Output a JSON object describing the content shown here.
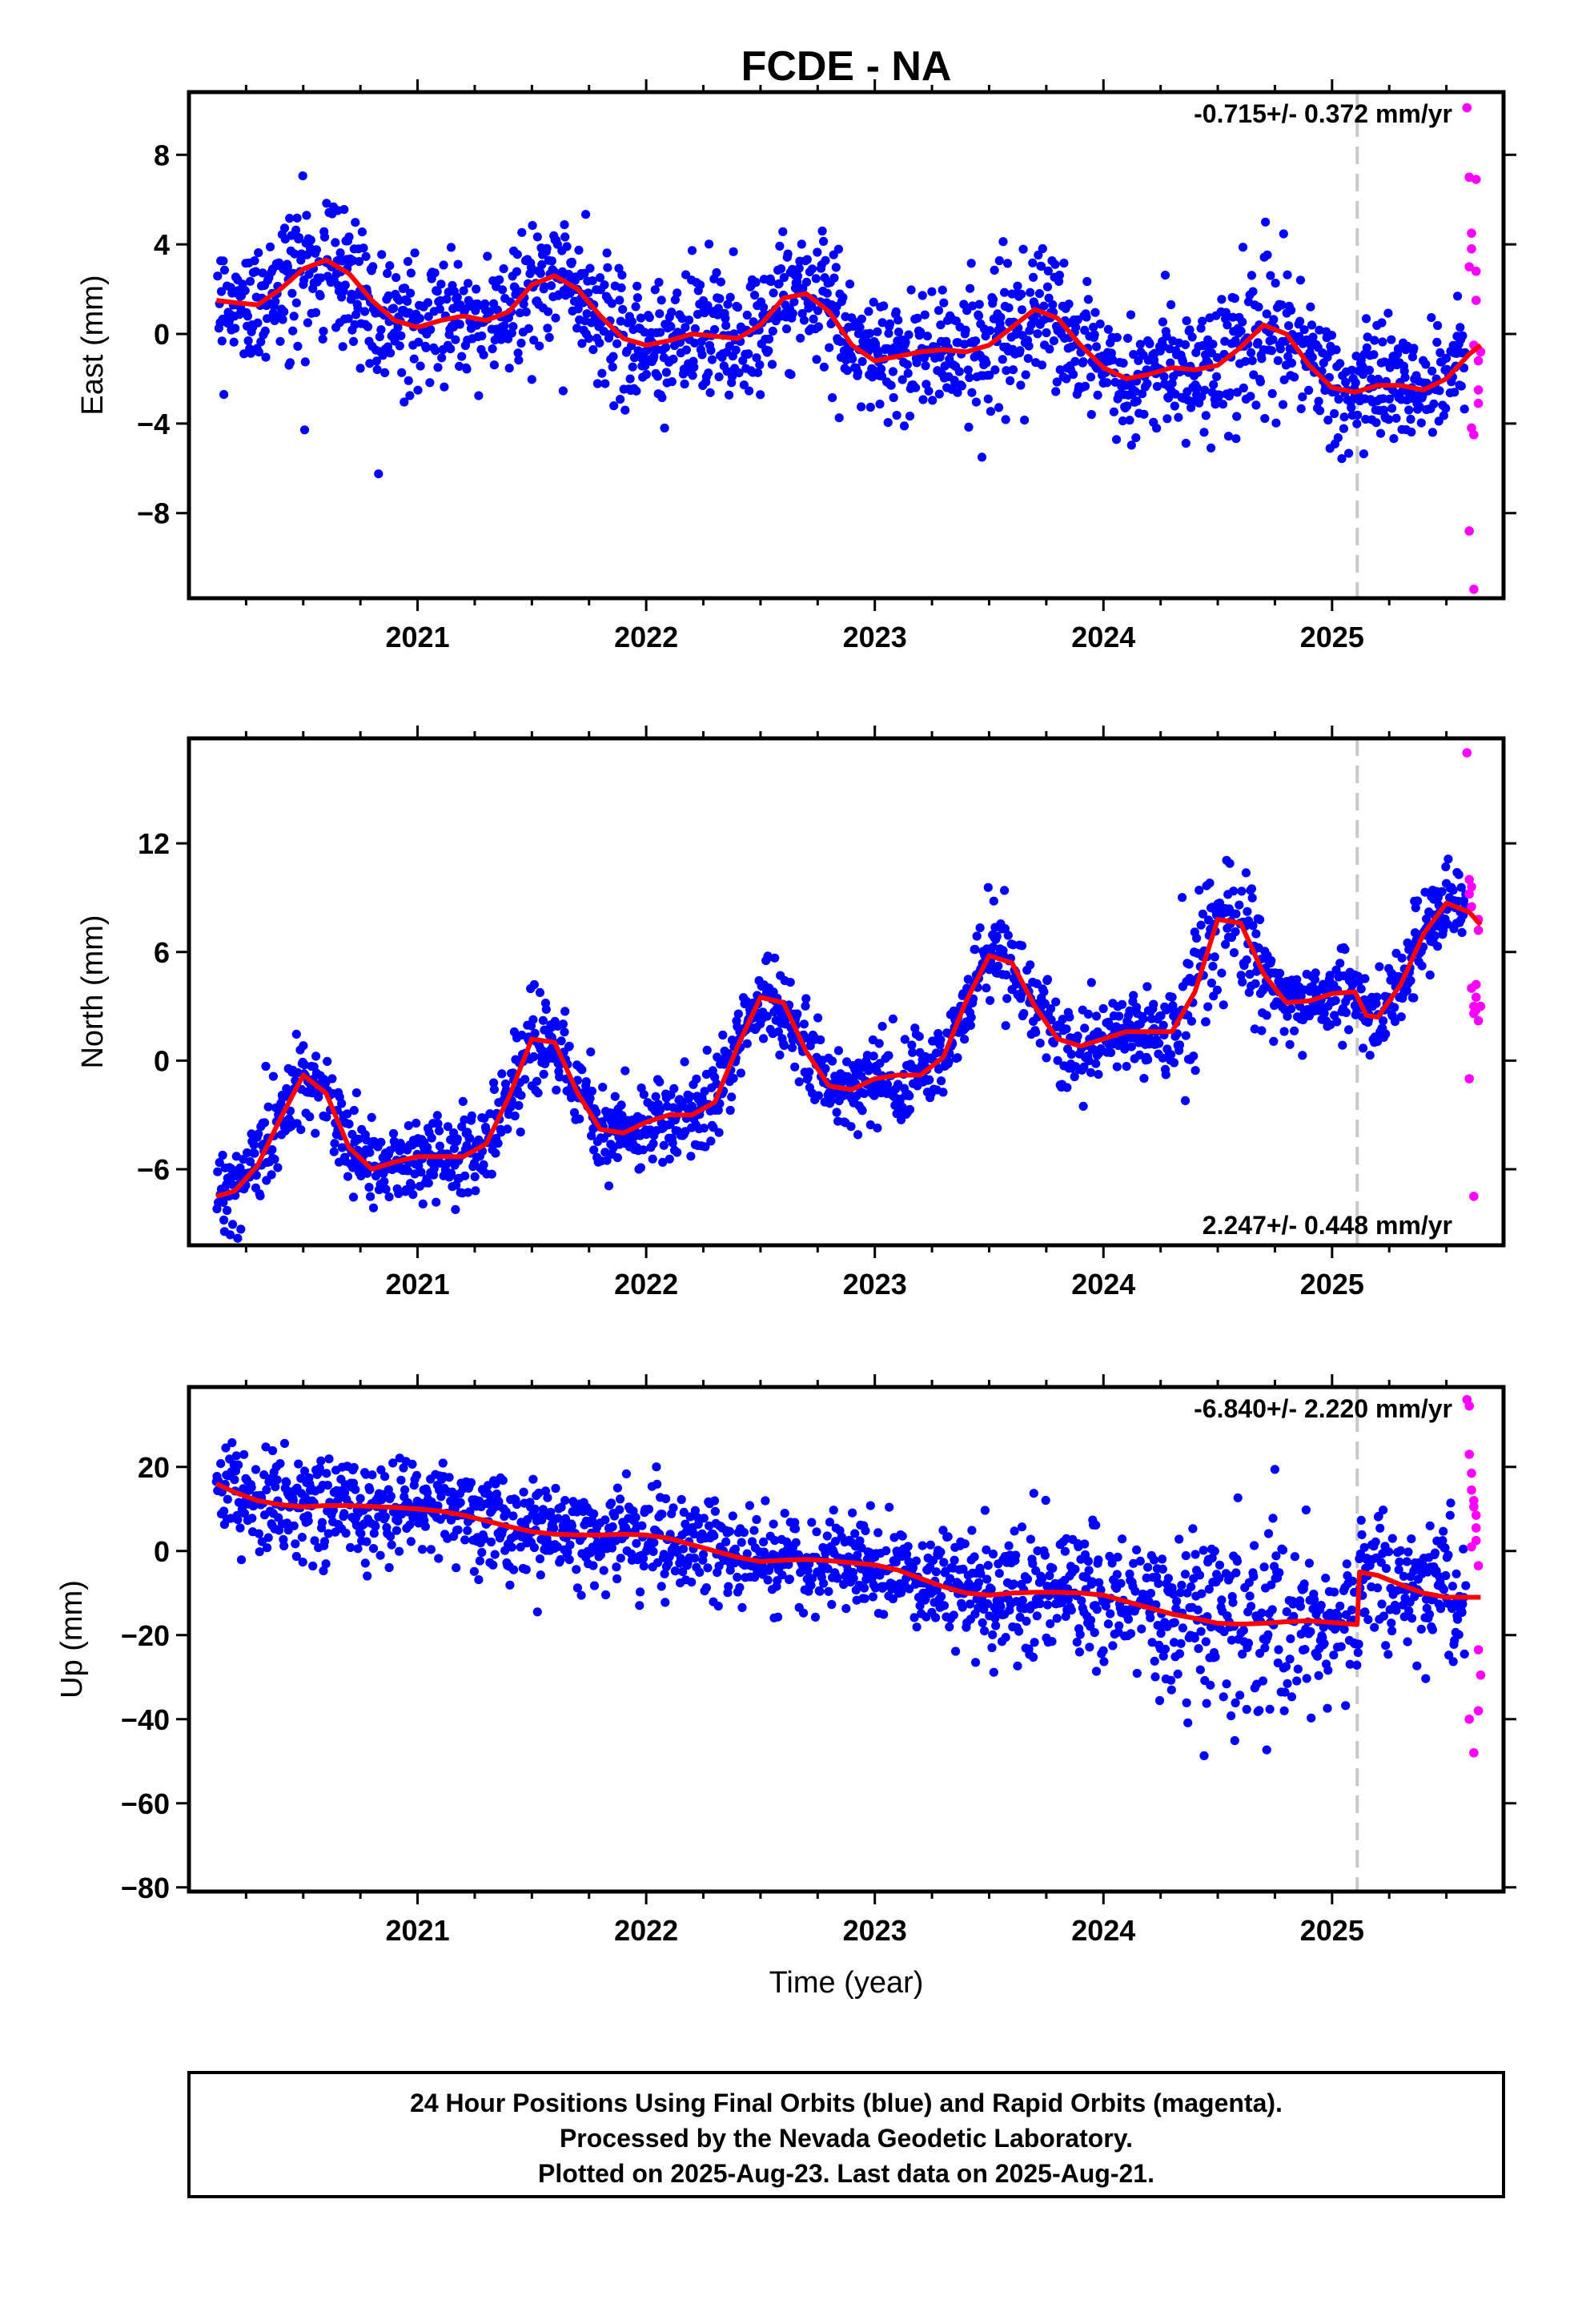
{
  "title": "FCDE - NA",
  "x_axis_label": "Time (year)",
  "footer_lines": [
    "24 Hour Positions Using Final Orbits (blue) and Rapid Orbits (magenta).",
    "Processed by the Nevada Geodetic Laboratory.",
    "Plotted on 2025-Aug-23. Last data on 2025-Aug-21."
  ],
  "colors": {
    "final_orbits": "#0000ff",
    "rapid_orbits": "#ff00ff",
    "model_fit": "#ff0000",
    "event_line": "#c8c8c8"
  },
  "chart_data": [
    {
      "type": "scatter",
      "ylabel": "East (mm)",
      "rate_label": "-0.715+/- 0.372 mm/yr",
      "rate_position": "top-right",
      "xlim": [
        2020.0,
        2025.75
      ],
      "ylim": [
        -11.8,
        10.8
      ],
      "xticks": [
        2021,
        2022,
        2023,
        2024,
        2025
      ],
      "xtick_labels": [
        "2021",
        "2022",
        "2023",
        "2024",
        "2025"
      ],
      "yticks": [
        -8,
        -4,
        0,
        4,
        8
      ],
      "ytick_labels": [
        "−8",
        "−4",
        "0",
        "4",
        "8"
      ],
      "event_x": 2025.11,
      "model_fit": {
        "x": [
          2020.12,
          2020.2,
          2020.3,
          2020.4,
          2020.5,
          2020.6,
          2020.7,
          2020.8,
          2020.9,
          2021.0,
          2021.1,
          2021.2,
          2021.3,
          2021.4,
          2021.5,
          2021.6,
          2021.7,
          2021.8,
          2021.9,
          2022.0,
          2022.1,
          2022.2,
          2022.3,
          2022.4,
          2022.5,
          2022.6,
          2022.7,
          2022.8,
          2022.9,
          2023.0,
          2023.1,
          2023.2,
          2023.3,
          2023.4,
          2023.5,
          2023.6,
          2023.7,
          2023.8,
          2023.9,
          2024.0,
          2024.1,
          2024.2,
          2024.3,
          2024.4,
          2024.5,
          2024.6,
          2024.7,
          2024.8,
          2024.9,
          2025.0,
          2025.1,
          2025.2,
          2025.3,
          2025.4,
          2025.5,
          2025.6,
          2025.65
        ],
        "y": [
          1.5,
          1.4,
          1.3,
          2.0,
          2.9,
          3.3,
          2.7,
          1.5,
          0.6,
          0.3,
          0.6,
          0.8,
          0.6,
          1.0,
          2.2,
          2.6,
          2.0,
          0.8,
          -0.2,
          -0.5,
          -0.3,
          0.0,
          -0.1,
          -0.2,
          0.4,
          1.6,
          1.8,
          1.0,
          -0.5,
          -1.2,
          -1.0,
          -0.8,
          -0.7,
          -0.8,
          -0.5,
          0.3,
          1.1,
          0.7,
          -0.5,
          -1.5,
          -2.0,
          -1.8,
          -1.5,
          -1.6,
          -1.4,
          -0.6,
          0.4,
          0.0,
          -1.4,
          -2.4,
          -2.6,
          -2.3,
          -2.3,
          -2.5,
          -2.0,
          -0.9,
          -0.5
        ]
      },
      "rapid_points": {
        "x": [
          2025.59,
          2025.6,
          2025.6,
          2025.61,
          2025.61,
          2025.62,
          2025.62,
          2025.63,
          2025.63,
          2025.64,
          2025.64,
          2025.65,
          2025.6,
          2025.62,
          2025.64,
          2025.61,
          2025.63
        ],
        "y": [
          10.1,
          7.0,
          3.0,
          4.5,
          3.8,
          -4.5,
          -0.5,
          6.9,
          2.8,
          -1.2,
          -3.1,
          -0.8,
          -8.8,
          -11.4,
          -2.5,
          -4.2,
          1.5
        ]
      }
    },
    {
      "type": "scatter",
      "ylabel": "North (mm)",
      "rate_label": "2.247+/- 0.448 mm/yr",
      "rate_position": "bottom-right",
      "xlim": [
        2020.0,
        2025.75
      ],
      "ylim": [
        -10.2,
        17.8
      ],
      "xticks": [
        2021,
        2022,
        2023,
        2024,
        2025
      ],
      "xtick_labels": [
        "2021",
        "2022",
        "2023",
        "2024",
        "2025"
      ],
      "yticks": [
        -6,
        0,
        6,
        12
      ],
      "ytick_labels": [
        "−6",
        "0",
        "6",
        "12"
      ],
      "event_x": 2025.11,
      "model_fit": {
        "x": [
          2020.12,
          2020.2,
          2020.3,
          2020.4,
          2020.5,
          2020.6,
          2020.7,
          2020.8,
          2020.9,
          2021.0,
          2021.1,
          2021.2,
          2021.3,
          2021.4,
          2021.5,
          2021.6,
          2021.7,
          2021.8,
          2021.9,
          2022.0,
          2022.1,
          2022.2,
          2022.3,
          2022.4,
          2022.5,
          2022.6,
          2022.7,
          2022.8,
          2022.9,
          2023.0,
          2023.1,
          2023.2,
          2023.3,
          2023.4,
          2023.5,
          2023.6,
          2023.7,
          2023.8,
          2023.9,
          2024.0,
          2024.1,
          2024.2,
          2024.3,
          2024.4,
          2024.5,
          2024.6,
          2024.7,
          2024.8,
          2024.9,
          2025.0,
          2025.1,
          2025.15,
          2025.2,
          2025.3,
          2025.4,
          2025.5,
          2025.6,
          2025.65
        ],
        "y": [
          -7.5,
          -7.2,
          -5.8,
          -3.2,
          -0.8,
          -1.8,
          -4.8,
          -6.0,
          -5.6,
          -5.3,
          -5.3,
          -5.3,
          -4.6,
          -2.0,
          1.2,
          1.0,
          -1.8,
          -3.8,
          -4.0,
          -3.4,
          -3.0,
          -3.0,
          -2.3,
          0.8,
          3.5,
          3.2,
          0.5,
          -1.4,
          -1.6,
          -1.0,
          -0.8,
          -0.8,
          0.2,
          3.3,
          5.8,
          5.4,
          3.0,
          1.2,
          0.8,
          1.2,
          1.6,
          1.6,
          1.6,
          3.8,
          7.8,
          7.6,
          4.8,
          3.2,
          3.3,
          3.7,
          3.8,
          2.5,
          2.4,
          4.2,
          7.0,
          8.7,
          8.2,
          7.5
        ]
      },
      "rapid_points": {
        "x": [
          2025.59,
          2025.6,
          2025.6,
          2025.61,
          2025.61,
          2025.62,
          2025.62,
          2025.63,
          2025.63,
          2025.64,
          2025.64,
          2025.65,
          2025.6,
          2025.62,
          2025.64,
          2025.61,
          2025.63
        ],
        "y": [
          17.0,
          10.0,
          9.2,
          8.5,
          4.0,
          3.0,
          2.6,
          3.5,
          2.8,
          7.8,
          7.2,
          3.0,
          -1.0,
          -7.5,
          2.2,
          9.6,
          4.2
        ]
      }
    },
    {
      "type": "scatter",
      "ylabel": "Up (mm)",
      "rate_label": "-6.840+/- 2.220 mm/yr",
      "rate_position": "top-right",
      "xlim": [
        2020.0,
        2025.75
      ],
      "ylim": [
        -81.0,
        39.0
      ],
      "xticks": [
        2021,
        2022,
        2023,
        2024,
        2025
      ],
      "xtick_labels": [
        "2021",
        "2022",
        "2023",
        "2024",
        "2025"
      ],
      "yticks": [
        -80,
        -60,
        -40,
        -20,
        0,
        20
      ],
      "ytick_labels": [
        "−80",
        "−60",
        "−40",
        "−20",
        "0",
        "20"
      ],
      "event_x": 2025.11,
      "model_fit": {
        "x": [
          2020.12,
          2020.2,
          2020.3,
          2020.4,
          2020.5,
          2020.6,
          2020.7,
          2020.8,
          2020.9,
          2021.0,
          2021.1,
          2021.2,
          2021.3,
          2021.4,
          2021.5,
          2021.6,
          2021.7,
          2021.8,
          2021.9,
          2022.0,
          2022.1,
          2022.2,
          2022.3,
          2022.4,
          2022.5,
          2022.6,
          2022.7,
          2022.8,
          2022.9,
          2023.0,
          2023.1,
          2023.2,
          2023.3,
          2023.4,
          2023.5,
          2023.6,
          2023.7,
          2023.8,
          2023.9,
          2024.0,
          2024.1,
          2024.2,
          2024.3,
          2024.4,
          2024.5,
          2024.6,
          2024.7,
          2024.8,
          2024.9,
          2025.0,
          2025.11,
          2025.12,
          2025.2,
          2025.3,
          2025.4,
          2025.5,
          2025.6,
          2025.65
        ],
        "y": [
          16.0,
          14.0,
          12.0,
          11.0,
          10.5,
          10.8,
          10.8,
          10.6,
          10.4,
          10.0,
          9.5,
          8.5,
          7.2,
          5.8,
          4.6,
          4.0,
          3.8,
          3.8,
          4.0,
          3.8,
          3.0,
          1.5,
          0.0,
          -1.5,
          -2.5,
          -2.2,
          -2.0,
          -2.3,
          -2.8,
          -3.3,
          -4.5,
          -6.5,
          -8.5,
          -10.0,
          -10.5,
          -10.0,
          -9.8,
          -9.8,
          -10.0,
          -10.5,
          -12.0,
          -13.5,
          -15.0,
          -16.0,
          -17.2,
          -17.4,
          -17.2,
          -16.8,
          -16.6,
          -17.0,
          -17.5,
          -5.0,
          -5.8,
          -8.0,
          -10.0,
          -11.0,
          -11.0,
          -11.0
        ]
      },
      "rapid_points": {
        "x": [
          2025.59,
          2025.6,
          2025.6,
          2025.61,
          2025.61,
          2025.62,
          2025.62,
          2025.63,
          2025.63,
          2025.64,
          2025.64,
          2025.65,
          2025.6,
          2025.62,
          2025.64,
          2025.61,
          2025.63
        ],
        "y": [
          36.0,
          34.5,
          23.0,
          18.5,
          14.5,
          12.0,
          10.5,
          8.5,
          2.5,
          -3.5,
          -23.5,
          -29.5,
          -40.0,
          -48.0,
          -38.0,
          1.0,
          5.5
        ]
      }
    }
  ]
}
